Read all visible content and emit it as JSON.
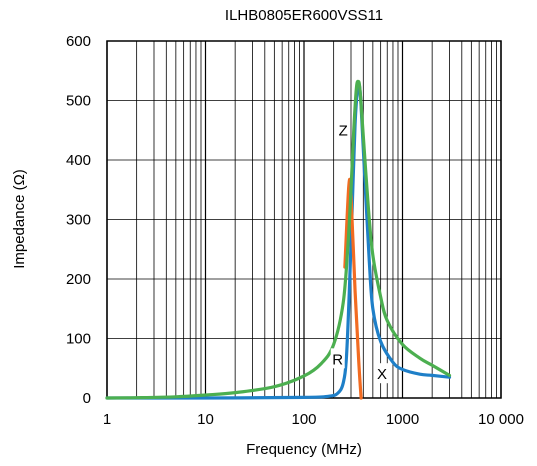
{
  "chart_data": {
    "type": "line",
    "title": "ILHB0805ER600VSS11",
    "xlabel": "Frequency (MHz)",
    "ylabel": "Impedance (Ω)",
    "x_scale": "log",
    "xlim": [
      1,
      10000
    ],
    "ylim": [
      0,
      600
    ],
    "x_ticks": [
      1,
      10,
      100,
      1000,
      10000
    ],
    "x_tick_labels": [
      "1",
      "10",
      "100",
      "1000",
      "10 000"
    ],
    "y_ticks": [
      0,
      100,
      200,
      300,
      400,
      500,
      600
    ],
    "y_tick_labels": [
      "0",
      "100",
      "200",
      "300",
      "400",
      "500",
      "600"
    ],
    "grid": true,
    "legend": "none",
    "series": [
      {
        "name": "Z",
        "color": "#4CAF50",
        "points": [
          [
            1,
            0
          ],
          [
            2,
            0.5
          ],
          [
            5,
            2
          ],
          [
            10,
            5
          ],
          [
            20,
            9
          ],
          [
            50,
            19
          ],
          [
            100,
            37
          ],
          [
            150,
            58
          ],
          [
            200,
            90
          ],
          [
            250,
            160
          ],
          [
            280,
            260
          ],
          [
            300,
            350
          ],
          [
            320,
            450
          ],
          [
            340,
            520
          ],
          [
            355,
            532
          ],
          [
            370,
            518
          ],
          [
            400,
            440
          ],
          [
            450,
            320
          ],
          [
            500,
            240
          ],
          [
            600,
            170
          ],
          [
            700,
            130
          ],
          [
            1000,
            90
          ],
          [
            1500,
            67
          ],
          [
            2000,
            55
          ],
          [
            3000,
            38
          ]
        ]
      },
      {
        "name": "X",
        "color": "#1E7FC8",
        "points": [
          [
            1,
            0
          ],
          [
            10,
            0
          ],
          [
            100,
            1
          ],
          [
            180,
            3
          ],
          [
            220,
            8
          ],
          [
            250,
            25
          ],
          [
            270,
            70
          ],
          [
            290,
            190
          ],
          [
            310,
            330
          ],
          [
            330,
            460
          ],
          [
            350,
            520
          ],
          [
            365,
            525
          ],
          [
            380,
            490
          ],
          [
            420,
            350
          ],
          [
            460,
            230
          ],
          [
            500,
            150
          ],
          [
            600,
            95
          ],
          [
            800,
            60
          ],
          [
            1000,
            48
          ],
          [
            1500,
            40
          ],
          [
            2000,
            38
          ],
          [
            3000,
            35
          ]
        ]
      },
      {
        "name": "R",
        "color": "#F26B21",
        "points": [
          [
            260,
            220
          ],
          [
            285,
            356
          ],
          [
            300,
            340
          ],
          [
            330,
            180
          ],
          [
            360,
            60
          ],
          [
            380,
            0
          ]
        ]
      }
    ],
    "annotations": [
      {
        "text": "Z",
        "x": 250,
        "y": 450
      },
      {
        "text": "R",
        "x": 220,
        "y": 65
      },
      {
        "text": "X",
        "x": 620,
        "y": 40
      }
    ]
  }
}
